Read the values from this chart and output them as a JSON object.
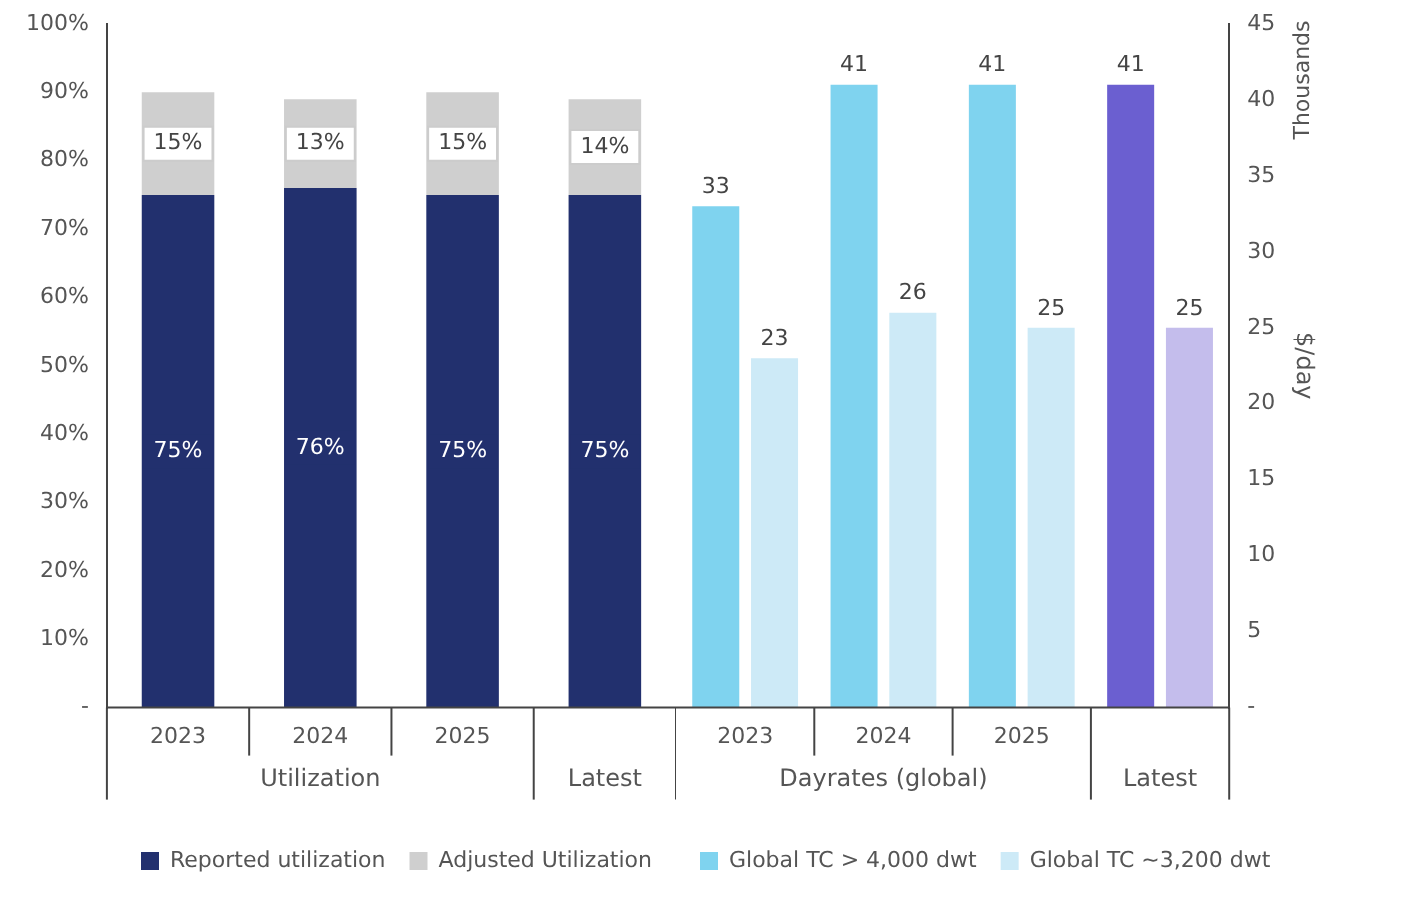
{
  "chart_data": [
    {
      "type": "bar",
      "stacked": true,
      "categories": [
        "2023",
        "2024",
        "2025",
        null
      ],
      "series": [
        {
          "name": "Reported utilization",
          "color": "#22306e",
          "values": [
            75,
            76,
            75,
            75
          ],
          "value_labels": [
            "75%",
            "76%",
            "75%",
            "75%"
          ]
        },
        {
          "name": "Adjusted Utilization",
          "color": "#cfcfcf",
          "values": [
            15,
            13,
            15,
            14
          ],
          "value_labels": [
            "15%",
            "13%",
            "15%",
            "14%"
          ]
        }
      ],
      "ylim": [
        0,
        100
      ],
      "yticks": [
        {
          "value": 0,
          "label": "-"
        },
        {
          "value": 10,
          "label": "10%"
        },
        {
          "value": 20,
          "label": "20%"
        },
        {
          "value": 30,
          "label": "30%"
        },
        {
          "value": 40,
          "label": "40%"
        },
        {
          "value": 50,
          "label": "50%"
        },
        {
          "value": 60,
          "label": "60%"
        },
        {
          "value": 70,
          "label": "70%"
        },
        {
          "value": 80,
          "label": "80%"
        },
        {
          "value": 90,
          "label": "90%"
        },
        {
          "value": 100,
          "label": "100%"
        }
      ],
      "annotations": [
        "Utilization",
        "Latest"
      ],
      "legend": "bottom",
      "grid": false
    },
    {
      "type": "bar",
      "categories": [
        "2023",
        "2024",
        "2025",
        null
      ],
      "series": [
        {
          "name": "Global TC > 4,000 dwt",
          "color": "#7fd3ef",
          "colors": [
            "#7fd3ef",
            "#7fd3ef",
            "#7fd3ef",
            "#6b5fd0"
          ],
          "axis": "y2",
          "values": [
            33,
            41,
            41,
            41
          ],
          "value_labels": [
            "33",
            "41",
            "41",
            "41"
          ]
        },
        {
          "name": "Global TC ~3,200 dwt",
          "color": "#cdeaf7",
          "colors": [
            "#cdeaf7",
            "#cdeaf7",
            "#cdeaf7",
            "#c4bdec"
          ],
          "axis": "y2",
          "values": [
            23,
            26,
            25,
            25
          ],
          "value_labels": [
            "23",
            "26",
            "25",
            "25"
          ]
        }
      ],
      "y2lim": [
        0,
        45
      ],
      "y2ticks": [
        {
          "value": 0,
          "label": "-"
        },
        5,
        10,
        15,
        20,
        25,
        30,
        35,
        40,
        45
      ],
      "y2label": "$/day",
      "annotations": [
        "Dayrates (global)",
        "Latest",
        "Thousands"
      ],
      "legend": "bottom",
      "grid": false
    }
  ]
}
